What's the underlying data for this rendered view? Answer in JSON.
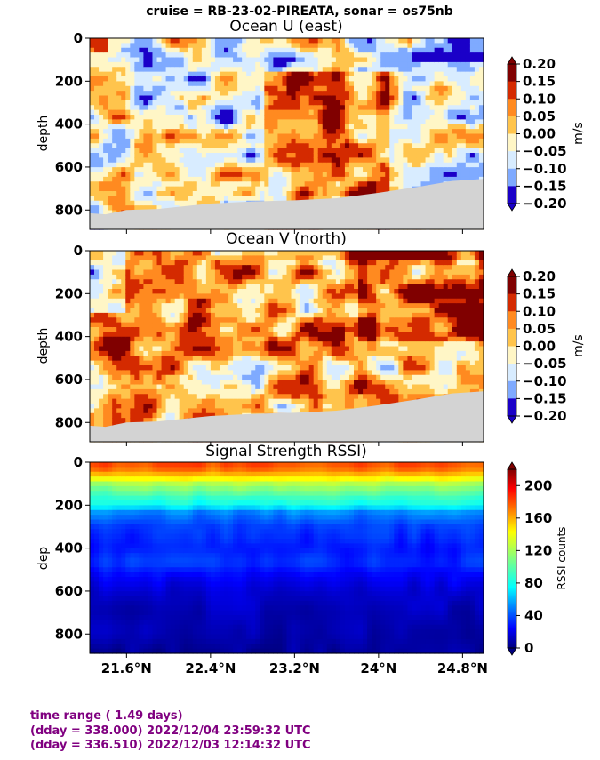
{
  "suptitle": "cruise = RB-23-02-PIREATA,  sonar = os75nb",
  "panels": [
    {
      "title": "Ocean U (east)",
      "ylabel": "depth",
      "colorbar": {
        "label": "m/s",
        "ticks": [
          "0.20",
          "0.15",
          "0.10",
          "0.05",
          "0.00",
          "−0.05",
          "−0.10",
          "−0.15",
          "−0.20"
        ],
        "colors": [
          "#800000",
          "#d42a00",
          "#ff8a20",
          "#ffc44c",
          "#fff6c6",
          "#d8ecff",
          "#7faaff",
          "#2e5fff",
          "#1a00c8"
        ]
      }
    },
    {
      "title": "Ocean V (north)",
      "ylabel": "depth",
      "colorbar": {
        "label": "m/s",
        "ticks": [
          "0.20",
          "0.15",
          "0.10",
          "0.05",
          "0.00",
          "−0.05",
          "−0.10",
          "−0.15",
          "−0.20"
        ],
        "colors": [
          "#800000",
          "#d42a00",
          "#ff8a20",
          "#ffc44c",
          "#fff6c6",
          "#d8ecff",
          "#7faaff",
          "#2e5fff",
          "#1a00c8"
        ]
      }
    },
    {
      "title": "Signal Strength RSSI)",
      "ylabel": "dep",
      "colorbar": {
        "label": "RSSI counts",
        "ticks": [
          "200",
          "160",
          "120",
          "80",
          "40",
          "0"
        ]
      }
    }
  ],
  "footer": {
    "line1": "time range ( 1.49 days)",
    "line2": "(dday = 338.000) 2022/12/04 23:59:32 UTC",
    "line3": "(dday = 336.510) 2022/12/03 12:14:32 UTC"
  },
  "colors": {
    "bottom_mask": "#d3d3d3",
    "footer_text": "#800080"
  },
  "chart_data": [
    {
      "type": "heatmap",
      "title": "Ocean U (east)",
      "ylabel": "depth",
      "x_ticks": [
        "21.6°N",
        "22.4°N",
        "23.2°N",
        "24°N",
        "24.8°N"
      ],
      "x_tick_values": [
        21.6,
        22.4,
        23.2,
        24.0,
        24.8
      ],
      "xlim": [
        21.25,
        25.0
      ],
      "y_ticks": [
        "0",
        "200",
        "400",
        "600",
        "800"
      ],
      "y_tick_values": [
        0,
        200,
        400,
        600,
        800
      ],
      "ylim": [
        890,
        0
      ],
      "color_range": [
        -0.2,
        0.2
      ],
      "units": "m/s",
      "bottom_depth": [
        [
          21.25,
          815
        ],
        [
          21.4,
          820
        ],
        [
          21.6,
          800
        ],
        [
          21.9,
          795
        ],
        [
          22.1,
          785
        ],
        [
          22.4,
          770
        ],
        [
          22.8,
          760
        ],
        [
          23.2,
          755
        ],
        [
          23.6,
          745
        ],
        [
          24.0,
          720
        ],
        [
          24.4,
          690
        ],
        [
          24.7,
          665
        ],
        [
          25.0,
          655
        ]
      ]
    },
    {
      "type": "heatmap",
      "title": "Ocean V (north)",
      "ylabel": "depth",
      "x_ticks": [
        "21.6°N",
        "22.4°N",
        "23.2°N",
        "24°N",
        "24.8°N"
      ],
      "x_tick_values": [
        21.6,
        22.4,
        23.2,
        24.0,
        24.8
      ],
      "xlim": [
        21.25,
        25.0
      ],
      "y_ticks": [
        "0",
        "200",
        "400",
        "600",
        "800"
      ],
      "y_tick_values": [
        0,
        200,
        400,
        600,
        800
      ],
      "ylim": [
        890,
        0
      ],
      "color_range": [
        -0.2,
        0.2
      ],
      "units": "m/s",
      "bottom_depth": [
        [
          21.25,
          815
        ],
        [
          21.4,
          820
        ],
        [
          21.6,
          800
        ],
        [
          21.9,
          795
        ],
        [
          22.1,
          785
        ],
        [
          22.4,
          770
        ],
        [
          22.8,
          760
        ],
        [
          23.2,
          755
        ],
        [
          23.6,
          745
        ],
        [
          24.0,
          720
        ],
        [
          24.4,
          690
        ],
        [
          24.7,
          665
        ],
        [
          25.0,
          655
        ]
      ]
    },
    {
      "type": "heatmap",
      "title": "Signal Strength RSSI)",
      "ylabel": "dep",
      "x_ticks": [
        "21.6°N",
        "22.4°N",
        "23.2°N",
        "24°N",
        "24.8°N"
      ],
      "x_tick_values": [
        21.6,
        22.4,
        23.2,
        24.0,
        24.8
      ],
      "xlim": [
        21.25,
        25.0
      ],
      "y_ticks": [
        "0",
        "200",
        "400",
        "600",
        "800"
      ],
      "y_tick_values": [
        0,
        200,
        400,
        600,
        800
      ],
      "ylim": [
        890,
        0
      ],
      "color_range": [
        0,
        220
      ],
      "units": "RSSI counts",
      "depth_profile": [
        [
          10,
          175
        ],
        [
          40,
          165
        ],
        [
          100,
          120
        ],
        [
          160,
          95
        ],
        [
          200,
          85
        ],
        [
          235,
          55
        ],
        [
          300,
          40
        ],
        [
          400,
          32
        ],
        [
          470,
          38
        ],
        [
          520,
          28
        ],
        [
          600,
          18
        ],
        [
          700,
          12
        ],
        [
          890,
          6
        ]
      ]
    }
  ]
}
